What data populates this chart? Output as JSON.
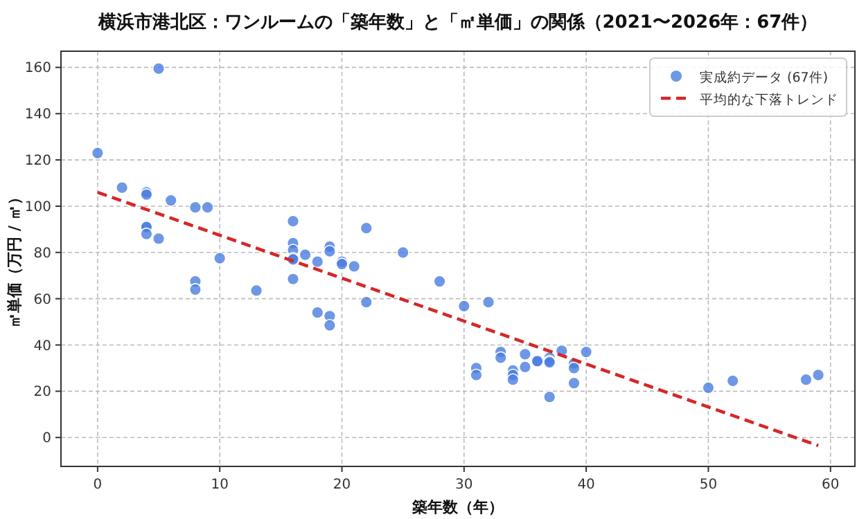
{
  "chart_data": {
    "type": "scatter",
    "title": "横浜市港北区：ワンルームの「築年数」と「㎡単価」の関係（2021〜2026年：67件）",
    "xlabel": "築年数（年）",
    "ylabel": "㎡単価（万円 / ㎡）",
    "xlim": [
      -3,
      62
    ],
    "ylim": [
      -12.5,
      167
    ],
    "xticks": [
      0,
      10,
      20,
      30,
      40,
      50,
      60
    ],
    "yticks": [
      0,
      20,
      40,
      60,
      80,
      100,
      120,
      140,
      160
    ],
    "grid": true,
    "legend": "top right",
    "series": [
      {
        "name": "実成約データ (67件)",
        "color": "#4a7de0",
        "marker": "circle",
        "x": [
          0,
          2,
          4,
          4,
          4,
          4,
          4,
          5,
          5,
          6,
          8,
          8,
          8,
          9,
          10,
          13,
          16,
          16,
          16,
          16,
          16,
          16,
          17,
          18,
          18,
          19,
          19,
          19,
          19,
          20,
          20,
          21,
          22,
          22,
          25,
          28,
          30,
          31,
          31,
          32,
          33,
          33,
          34,
          34,
          34,
          35,
          35,
          36,
          36,
          37,
          37,
          37,
          37,
          38,
          39,
          39,
          39,
          40,
          50,
          52,
          58,
          59
        ],
        "values": [
          123,
          108,
          106,
          105,
          91.5,
          91,
          88,
          159.5,
          86,
          102.5,
          99.5,
          67.5,
          64,
          99.5,
          77.5,
          63.5,
          93.5,
          84,
          81,
          77.5,
          77,
          68.5,
          79,
          76,
          54,
          82.5,
          80.5,
          52.5,
          48.5,
          76,
          75,
          74,
          90.5,
          58.5,
          80,
          67.5,
          56.8,
          30,
          27,
          58.5,
          37,
          34.5,
          29,
          27,
          25,
          36,
          30.5,
          33,
          33,
          34.5,
          33,
          32.5,
          17.5,
          37.5,
          32,
          30,
          23.5,
          37,
          21.5,
          24.5,
          25,
          27
        ]
      },
      {
        "name": "平均的な下落トレンド",
        "type": "line",
        "color": "#d62728",
        "line_style": "dashed",
        "marker": "none",
        "x": [
          0,
          59
        ],
        "values": [
          106,
          -3.5
        ]
      }
    ]
  }
}
